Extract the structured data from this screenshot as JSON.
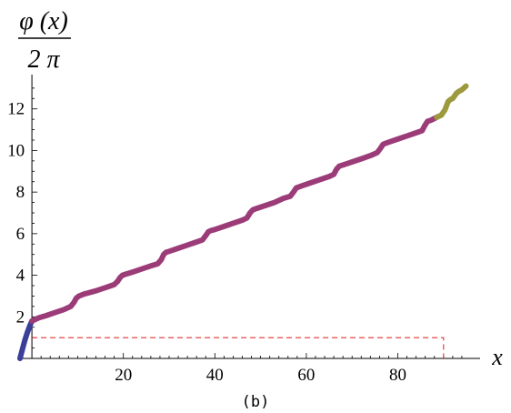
{
  "chart_data": {
    "type": "line",
    "ylabel_numerator": "φ (x)",
    "ylabel_denominator": "2 π",
    "xlabel": "x",
    "caption": "(b)",
    "xlim": [
      -3,
      96
    ],
    "ylim": [
      0,
      13.3
    ],
    "x_ticks": [
      20,
      40,
      60,
      80
    ],
    "x_tick_labels": [
      "20",
      "40",
      "60",
      "80"
    ],
    "y_ticks": [
      2,
      4,
      6,
      8,
      10,
      12
    ],
    "y_tick_labels": [
      "2",
      "4",
      "6",
      "8",
      "10",
      "12"
    ],
    "grid": false,
    "series": [
      {
        "color": "#3b3f98",
        "x": [
          -2.6,
          -2.0,
          -1.5,
          -1.0,
          -0.5,
          0.0
        ],
        "y": [
          0.0,
          0.5,
          0.9,
          1.25,
          1.55,
          1.8
        ]
      },
      {
        "color": "#9b3c78",
        "x": [
          0.0,
          1.5,
          3.0,
          5.0,
          7.0,
          8.5,
          9.2,
          9.7,
          10.3,
          11.5,
          14.0,
          16.0,
          18.0,
          18.7,
          19.3,
          19.8,
          20.5,
          22.0,
          24.0,
          26.0,
          27.5,
          28.3,
          28.8,
          29.3,
          30.0,
          32.0,
          34.0,
          36.0,
          37.3,
          38.0,
          38.6,
          39.2,
          40.0,
          42.0,
          44.0,
          46.0,
          47.0,
          47.7,
          48.3,
          49.0,
          51.0,
          53.0,
          55.0,
          56.5,
          57.2,
          57.8,
          58.4,
          59.0,
          61.0,
          63.0,
          65.0,
          66.0,
          66.6,
          67.2,
          68.0,
          70.0,
          72.0,
          74.0,
          75.5,
          76.2,
          76.8,
          77.4,
          78.0,
          80.0,
          82.0,
          84.0,
          85.3,
          85.9,
          86.5,
          87.2,
          88.5
        ],
        "y": [
          1.8,
          1.95,
          2.05,
          2.2,
          2.35,
          2.5,
          2.7,
          2.9,
          3.0,
          3.1,
          3.25,
          3.4,
          3.55,
          3.7,
          3.9,
          4.0,
          4.05,
          4.15,
          4.3,
          4.45,
          4.55,
          4.75,
          5.0,
          5.1,
          5.15,
          5.3,
          5.45,
          5.6,
          5.7,
          5.9,
          6.1,
          6.15,
          6.2,
          6.35,
          6.5,
          6.65,
          6.75,
          7.0,
          7.15,
          7.2,
          7.35,
          7.5,
          7.7,
          7.8,
          8.0,
          8.2,
          8.25,
          8.3,
          8.45,
          8.6,
          8.75,
          8.85,
          9.1,
          9.25,
          9.3,
          9.45,
          9.6,
          9.75,
          9.9,
          10.1,
          10.3,
          10.35,
          10.4,
          10.55,
          10.7,
          10.85,
          10.95,
          11.2,
          11.4,
          11.45,
          11.6
        ]
      },
      {
        "color": "#9c9a3c",
        "x": [
          88.5,
          89.5,
          90.3,
          91.0,
          91.5,
          92.0,
          92.8,
          93.4,
          93.9,
          94.4,
          94.9
        ],
        "y": [
          11.6,
          11.7,
          11.95,
          12.35,
          12.45,
          12.5,
          12.75,
          12.85,
          12.9,
          13.0,
          13.1
        ]
      }
    ],
    "dashed_box": {
      "color": "#e03030",
      "x_end": 90,
      "y_top": 1
    }
  }
}
